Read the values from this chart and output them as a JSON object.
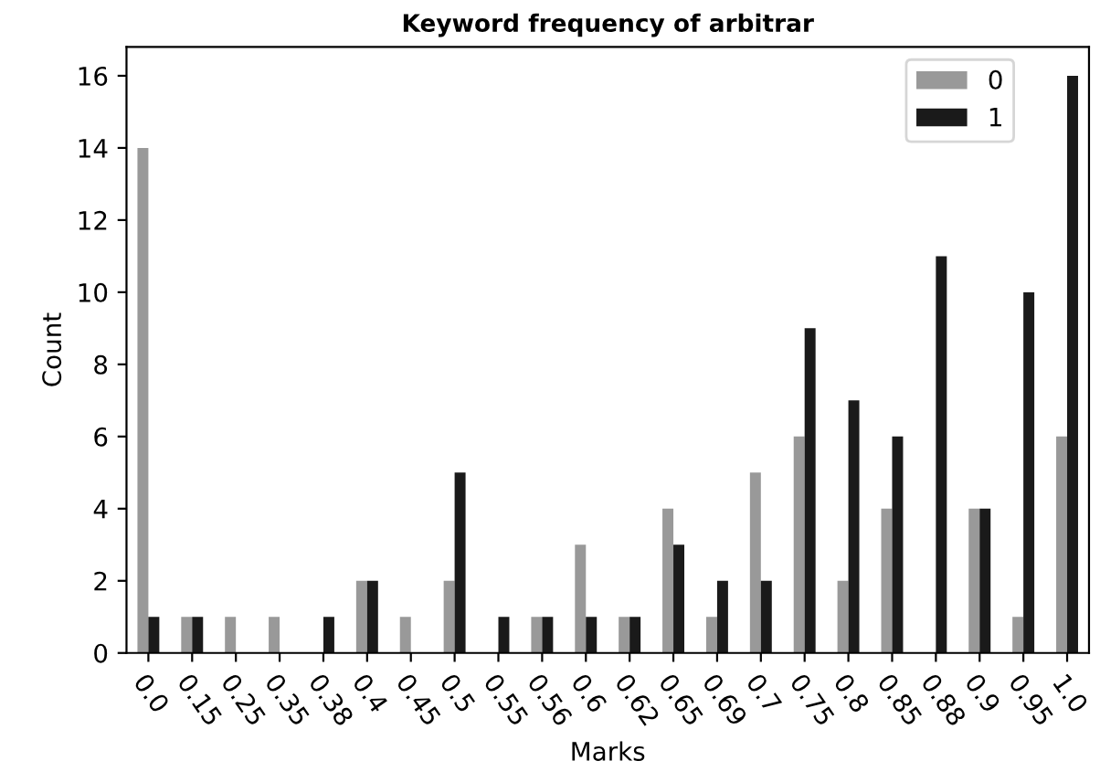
{
  "chart_data": {
    "type": "bar",
    "title": "Keyword frequency of arbitrar",
    "xlabel": "Marks",
    "ylabel": "Count",
    "categories": [
      "0.0",
      "0.15",
      "0.25",
      "0.35",
      "0.38",
      "0.4",
      "0.45",
      "0.5",
      "0.55",
      "0.56",
      "0.6",
      "0.62",
      "0.65",
      "0.69",
      "0.7",
      "0.75",
      "0.8",
      "0.85",
      "0.88",
      "0.9",
      "0.95",
      "1.0"
    ],
    "series": [
      {
        "name": "0",
        "color": "#999999",
        "values": [
          14,
          1,
          1,
          1,
          0,
          2,
          1,
          2,
          0,
          1,
          3,
          1,
          4,
          1,
          5,
          6,
          2,
          4,
          0,
          4,
          1,
          6
        ]
      },
      {
        "name": "1",
        "color": "#1a1a1a",
        "values": [
          1,
          1,
          0,
          0,
          1,
          2,
          0,
          5,
          1,
          1,
          1,
          1,
          3,
          2,
          2,
          9,
          7,
          6,
          11,
          4,
          10,
          16
        ]
      }
    ],
    "ylim": [
      0,
      16.8
    ],
    "yticks": [
      0,
      2,
      4,
      6,
      8,
      10,
      12,
      14,
      16
    ],
    "grid": false,
    "legend": "top right"
  }
}
